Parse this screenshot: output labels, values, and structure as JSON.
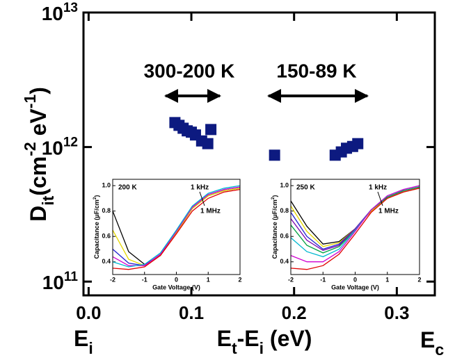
{
  "chart_data": [
    {
      "type": "scatter",
      "y_label": [
        "D",
        "it",
        "(cm",
        "-2",
        " eV",
        "-1",
        ")"
      ],
      "x_label": [
        "E",
        "t",
        "-E",
        "i",
        " (eV)"
      ],
      "x_left_label": [
        "E",
        "i"
      ],
      "x_right_label": [
        "E",
        "c"
      ],
      "annotations": [
        "300-200 K",
        "150-89 K"
      ],
      "log_y": true,
      "xlim": [
        -0.005,
        0.337
      ],
      "ylim": [
        79000000000.0,
        10000000000000.0
      ],
      "xticks": [
        {
          "value": 0,
          "label": "0.0"
        },
        0.1,
        0.2,
        0.3
      ],
      "yticks": [
        {
          "value": 100000000000.0,
          "label": "10",
          "power": "11"
        },
        {
          "value": 1000000000000.0,
          "label": "10",
          "power": "12"
        },
        {
          "value": 10000000000000.0,
          "label": "10",
          "power": "13"
        }
      ],
      "color": "#0d1a80",
      "x": [
        0.084,
        0.088,
        0.092,
        0.096,
        0.1,
        0.104,
        0.11,
        0.116,
        0.119,
        0.181,
        0.24,
        0.246,
        0.251,
        0.257,
        0.262
      ],
      "values": [
        1520000000000.0,
        1450000000000.0,
        1380000000000.0,
        1320000000000.0,
        1290000000000.0,
        1230000000000.0,
        1110000000000.0,
        1060000000000.0,
        1350000000000.0,
        870000000000.0,
        870000000000.0,
        920000000000.0,
        980000000000.0,
        1010000000000.0,
        1060000000000.0
      ]
    },
    {
      "type": "line",
      "title": "200 K",
      "annotations": [
        "1 kHz",
        "1 MHz"
      ],
      "y_label": [
        "Capacitance (μF/cm",
        "2",
        ")"
      ],
      "x_label": "Gate Voltage (V)",
      "xlim": [
        -2,
        2
      ],
      "ylim": [
        0.3,
        1.05
      ],
      "xticks": [
        -2,
        -1,
        0,
        1,
        2
      ],
      "yticks": [
        0.4,
        0.6,
        0.8,
        {
          "value": 1,
          "label": "1.0"
        }
      ],
      "x": [
        -2,
        -1.5,
        -1,
        -0.5,
        0,
        0.5,
        1,
        1.5,
        2
      ],
      "series": [
        {
          "color": "#000000",
          "values": [
            0.8,
            0.48,
            0.38,
            0.45,
            0.63,
            0.82,
            0.92,
            0.96,
            0.98
          ]
        },
        {
          "color": "#e6d800",
          "values": [
            0.65,
            0.42,
            0.37,
            0.45,
            0.63,
            0.82,
            0.92,
            0.96,
            0.98
          ]
        },
        {
          "color": "#1f1fd0",
          "values": [
            0.5,
            0.39,
            0.37,
            0.46,
            0.64,
            0.83,
            0.93,
            0.97,
            0.99
          ]
        },
        {
          "color": "#d000d0",
          "values": [
            0.44,
            0.37,
            0.37,
            0.46,
            0.64,
            0.83,
            0.93,
            0.97,
            0.99
          ]
        },
        {
          "color": "#00b8d0",
          "values": [
            0.4,
            0.36,
            0.38,
            0.47,
            0.65,
            0.84,
            0.94,
            0.98,
            1.0
          ]
        },
        {
          "color": "#e00000",
          "values": [
            0.35,
            0.34,
            0.36,
            0.45,
            0.62,
            0.8,
            0.9,
            0.95,
            0.97
          ]
        }
      ]
    },
    {
      "type": "line",
      "title": "250 K",
      "annotations": [
        "1 kHz",
        "1 MHz"
      ],
      "y_label": [
        "Capacitance (μF/cm",
        "2",
        ")"
      ],
      "x_label": "Gate Voltage (V)",
      "xlim": [
        -2,
        2
      ],
      "ylim": [
        0.3,
        1.05
      ],
      "xticks": [
        -2,
        -1,
        0,
        1,
        2
      ],
      "yticks": [
        0.4,
        0.6,
        0.8,
        {
          "value": 1,
          "label": "1.0"
        }
      ],
      "x": [
        -2,
        -1.5,
        -1,
        -0.5,
        0,
        0.5,
        1,
        1.5,
        2
      ],
      "series": [
        {
          "color": "#000000",
          "values": [
            0.88,
            0.68,
            0.54,
            0.56,
            0.66,
            0.8,
            0.9,
            0.95,
            0.98
          ]
        },
        {
          "color": "#e6d800",
          "values": [
            0.84,
            0.64,
            0.52,
            0.55,
            0.66,
            0.8,
            0.9,
            0.95,
            0.98
          ]
        },
        {
          "color": "#1f1fd0",
          "values": [
            0.79,
            0.6,
            0.5,
            0.54,
            0.66,
            0.81,
            0.91,
            0.96,
            0.99
          ]
        },
        {
          "color": "#7a00b0",
          "values": [
            0.74,
            0.57,
            0.49,
            0.53,
            0.66,
            0.81,
            0.91,
            0.96,
            0.99
          ]
        },
        {
          "color": "#00a040",
          "values": [
            0.69,
            0.53,
            0.47,
            0.52,
            0.65,
            0.81,
            0.91,
            0.96,
            0.99
          ]
        },
        {
          "color": "#00b8d0",
          "values": [
            0.59,
            0.48,
            0.44,
            0.5,
            0.65,
            0.81,
            0.92,
            0.97,
            1.0
          ]
        },
        {
          "color": "#d000d0",
          "values": [
            0.45,
            0.4,
            0.4,
            0.48,
            0.64,
            0.81,
            0.92,
            0.97,
            1.0
          ]
        },
        {
          "color": "#e00000",
          "values": [
            0.35,
            0.34,
            0.37,
            0.46,
            0.62,
            0.79,
            0.9,
            0.95,
            0.98
          ]
        }
      ]
    }
  ]
}
